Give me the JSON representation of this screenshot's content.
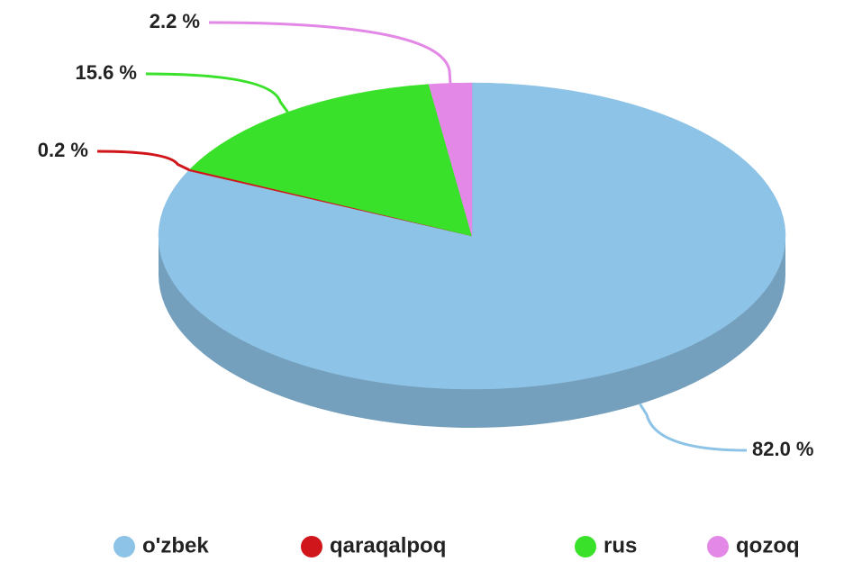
{
  "chart_data": {
    "type": "pie3d",
    "categories": [
      "o'zbek",
      "qaraqalpoq",
      "rus",
      "qozoq"
    ],
    "values": [
      82.0,
      0.2,
      15.6,
      2.2
    ],
    "value_labels": [
      "82.0 %",
      "0.2 %",
      "15.6 %",
      "2.2 %"
    ],
    "colors": [
      "#8dc3e6",
      "#d0151b",
      "#3ae12a",
      "#e388e6"
    ],
    "legend": "bottom"
  }
}
